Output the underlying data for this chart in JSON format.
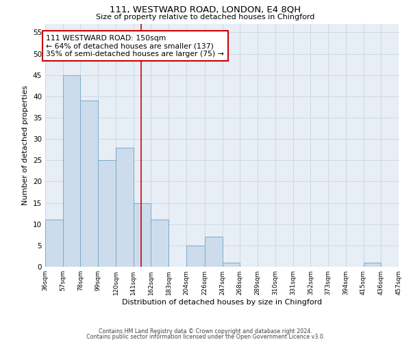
{
  "title": "111, WESTWARD ROAD, LONDON, E4 8QH",
  "subtitle": "Size of property relative to detached houses in Chingford",
  "xlabel": "Distribution of detached houses by size in Chingford",
  "ylabel": "Number of detached properties",
  "bar_values": [
    11,
    45,
    39,
    25,
    28,
    15,
    11,
    0,
    5,
    7,
    1,
    0,
    0,
    0,
    0,
    0,
    0,
    0,
    1,
    0
  ],
  "bin_edges": [
    36,
    57,
    78,
    99,
    120,
    141,
    162,
    183,
    204,
    226,
    247,
    268,
    289,
    310,
    331,
    352,
    373,
    394,
    415,
    436,
    457
  ],
  "tick_labels": [
    "36sqm",
    "57sqm",
    "78sqm",
    "99sqm",
    "120sqm",
    "141sqm",
    "162sqm",
    "183sqm",
    "204sqm",
    "226sqm",
    "247sqm",
    "268sqm",
    "289sqm",
    "310sqm",
    "331sqm",
    "352sqm",
    "373sqm",
    "394sqm",
    "415sqm",
    "436sqm",
    "457sqm"
  ],
  "bar_color": "#ccdcec",
  "bar_edge_color": "#7aaaca",
  "property_line_x": 150,
  "property_line_color": "#cc0000",
  "annotation_text": "111 WESTWARD ROAD: 150sqm\n← 64% of detached houses are smaller (137)\n35% of semi-detached houses are larger (75) →",
  "annotation_box_color": "#ffffff",
  "annotation_box_edge_color": "#cc0000",
  "ylim": [
    0,
    57
  ],
  "yticks": [
    0,
    5,
    10,
    15,
    20,
    25,
    30,
    35,
    40,
    45,
    50,
    55
  ],
  "footer_line1": "Contains HM Land Registry data © Crown copyright and database right 2024.",
  "footer_line2": "Contains public sector information licensed under the Open Government Licence v3.0.",
  "background_color": "#ffffff",
  "grid_color": "#cdd8e5"
}
